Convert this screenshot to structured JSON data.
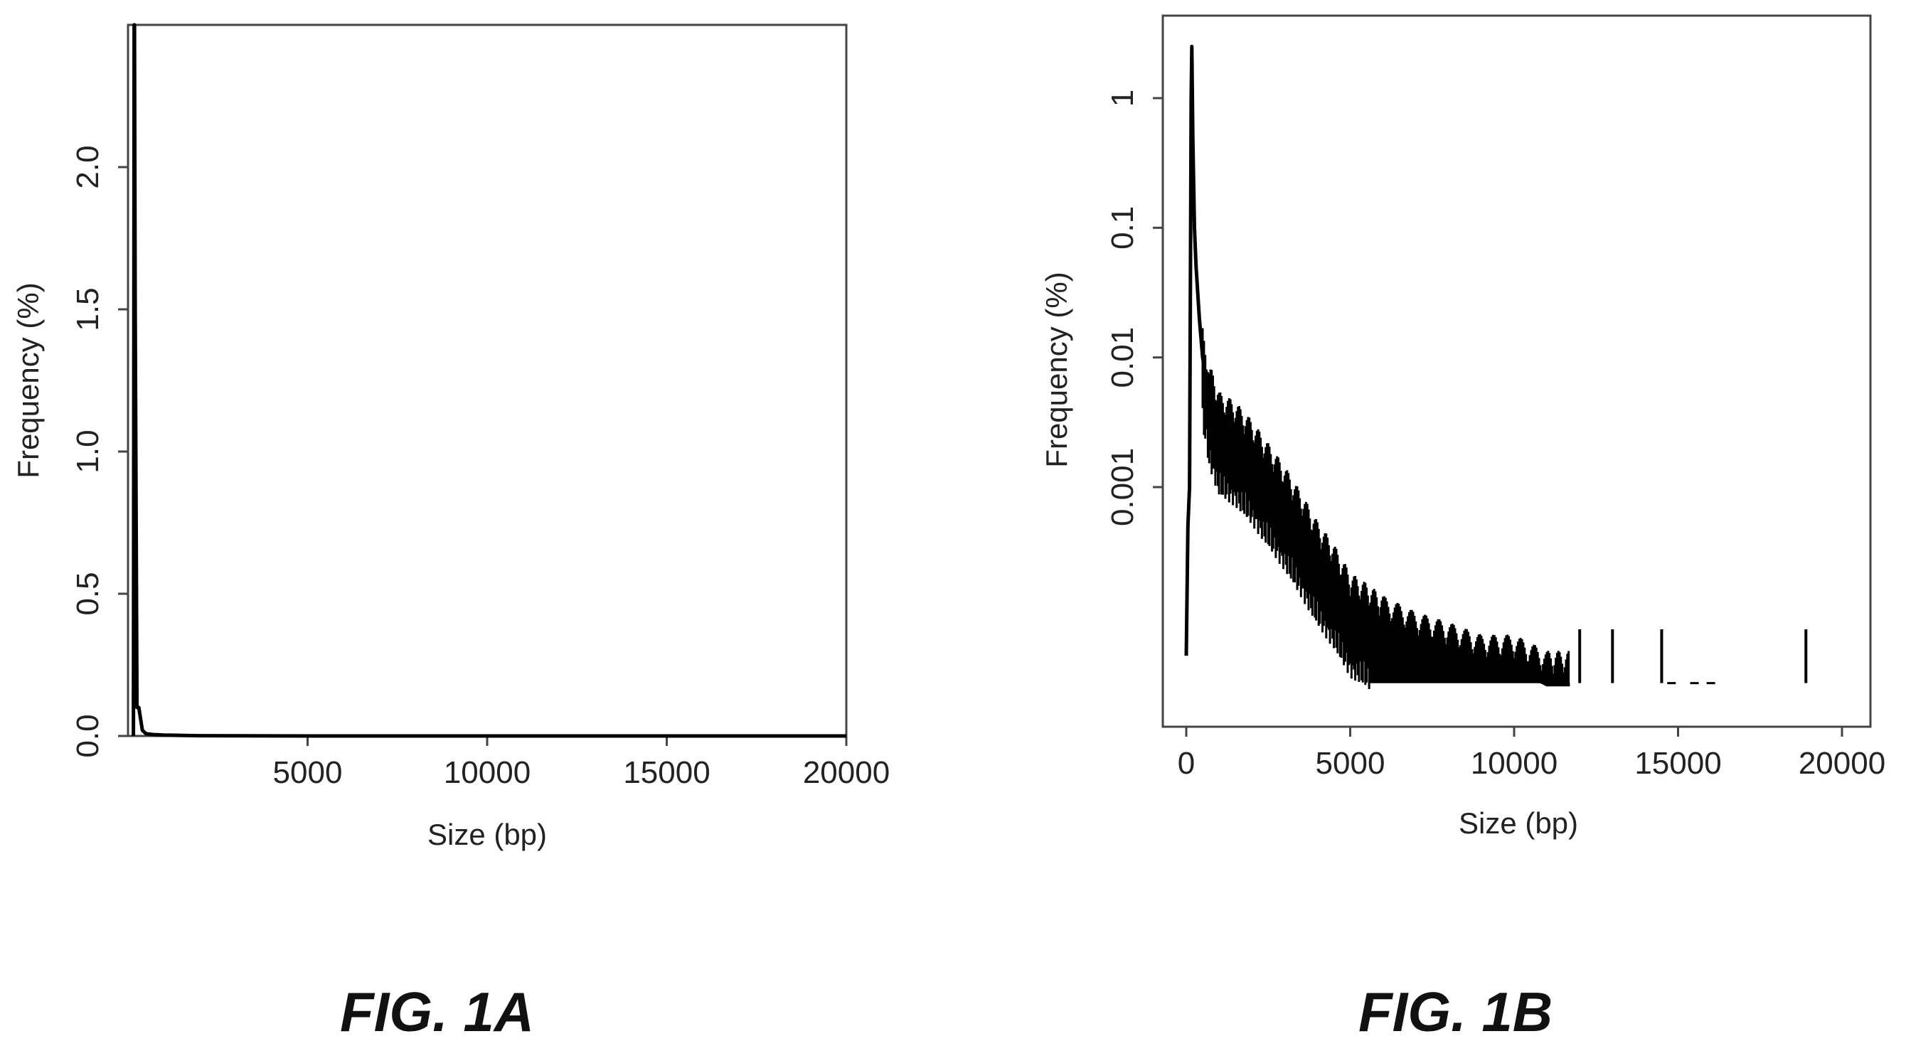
{
  "figures": [
    {
      "caption": "FIG. 1A",
      "chart": {
        "type": "line",
        "xlabel": "Size (bp)",
        "ylabel": "Frequency (%)",
        "xlim": [
          0,
          20000
        ],
        "ylim": [
          0,
          2.5
        ],
        "x_scale": "linear",
        "y_scale": "linear",
        "x_ticks": [
          5000,
          10000,
          15000,
          20000
        ],
        "x_tick_labels": [
          "5000",
          "10000",
          "15000",
          "20000"
        ],
        "y_ticks": [
          0.0,
          0.5,
          1.0,
          1.5,
          2.0
        ],
        "y_tick_labels": [
          "0.0",
          "0.5",
          "1.0",
          "1.5",
          "2.0"
        ],
        "grid": false,
        "color": "#000000"
      }
    },
    {
      "caption": "FIG. 1B",
      "chart": {
        "type": "line",
        "xlabel": "Size (bp)",
        "ylabel": "Frequency (%)",
        "xlim": [
          0,
          20000
        ],
        "ylim": [
          3e-05,
          3
        ],
        "x_scale": "linear",
        "y_scale": "log",
        "x_ticks": [
          0,
          5000,
          10000,
          15000,
          20000
        ],
        "x_tick_labels": [
          "0",
          "5000",
          "10000",
          "15000",
          "20000"
        ],
        "y_ticks": [
          0.001,
          0.01,
          0.1,
          1
        ],
        "y_tick_labels": [
          "0.001",
          "0.01",
          "0.1",
          "1"
        ],
        "grid": false,
        "color": "#000000"
      }
    }
  ],
  "chart_data": [
    {
      "type": "line",
      "xlabel": "Size (bp)",
      "ylabel": "Frequency (%)",
      "xlim": [
        0,
        20000
      ],
      "ylim": [
        0,
        2.5
      ],
      "series": [
        {
          "x": [
            150,
            160,
            170,
            180,
            200,
            250,
            300,
            350,
            400,
            500,
            700,
            1000,
            1500,
            2000,
            3000,
            5000,
            10000,
            20000
          ],
          "values": [
            0.0,
            1.2,
            2.5,
            2.5,
            1.5,
            0.1,
            0.1,
            0.06,
            0.02,
            0.008,
            0.005,
            0.003,
            0.002,
            0.001,
            0.0005,
            0.0001,
            0.0,
            0.0
          ]
        }
      ]
    },
    {
      "type": "line",
      "xlabel": "Size (bp)",
      "ylabel": "Frequency (%)",
      "xlim": [
        0,
        20000
      ],
      "y_scale": "log",
      "series": [
        {
          "x": [
            0,
            50,
            100,
            150,
            170,
            200,
            250,
            300,
            400,
            500,
            700,
            1000,
            1500,
            2000,
            2500,
            3000,
            3500,
            4000,
            4500,
            5000,
            5500,
            6000,
            7000,
            8000,
            9000,
            10000,
            11000,
            11700
          ],
          "values": [
            5e-05,
            0.0005,
            0.001,
            1.0,
            2.5,
            0.5,
            0.1,
            0.05,
            0.02,
            0.01,
            0.005,
            0.003,
            0.0025,
            0.0018,
            0.0012,
            0.0008,
            0.0005,
            0.0003,
            0.0002,
            0.00012,
            0.0001,
            8e-05,
            6e-05,
            5e-05,
            4e-05,
            4e-05,
            3e-05,
            3e-05
          ]
        }
      ],
      "isolated_ticks_x": [
        12000,
        13000,
        14500,
        18900
      ],
      "low_values_x": [
        14800,
        15500,
        16000
      ]
    }
  ]
}
